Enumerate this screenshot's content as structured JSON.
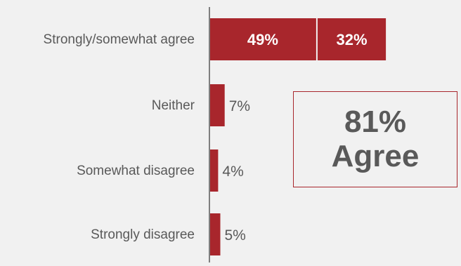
{
  "chart_data": {
    "type": "bar",
    "orientation": "horizontal",
    "stacked": true,
    "categories": [
      "Strongly/somewhat agree",
      "Neither",
      "Somewhat disagree",
      "Strongly disagree"
    ],
    "series": [
      {
        "values": [
          49,
          7,
          4,
          5
        ],
        "labels": [
          "49%",
          "7%",
          "4%",
          "5%"
        ]
      },
      {
        "values": [
          32,
          0,
          0,
          0
        ],
        "labels": [
          "32%",
          "",
          "",
          ""
        ]
      }
    ],
    "xlim": [
      0,
      100
    ],
    "grid": false,
    "colors": {
      "bar": "#a8262c",
      "axis": "#7f7f7f",
      "label": "#595959",
      "inner_label": "#ffffff"
    }
  },
  "callout": {
    "value": "81%",
    "label": "Agree"
  }
}
